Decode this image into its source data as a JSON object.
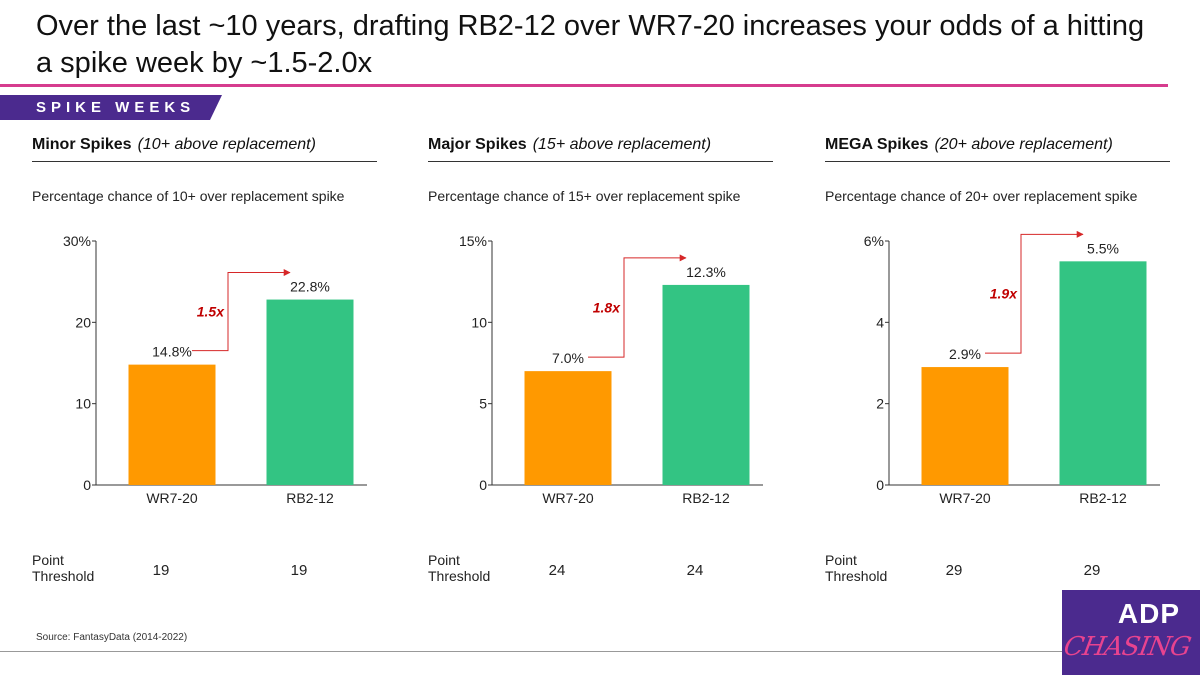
{
  "title": "Over the last ~10 years, drafting RB2-12 over WR7-20 increases your odds of a hitting a spike week by ~1.5-2.0x",
  "section_tag": "SPIKE WEEKS",
  "threshold_label_line1": "Point",
  "threshold_label_line2": "Threshold",
  "source": "Source: FantasyData (2014-2022)",
  "logo": {
    "top": "ADP",
    "bottom": "CHASING"
  },
  "colors": {
    "wr": "#ff9900",
    "rb": "#33c483",
    "multiplier": "#c00000",
    "arrow": "#d62728"
  },
  "panels": [
    {
      "heading": "Minor Spikes",
      "qualifier": "(10+ above replacement)",
      "subtitle": "Percentage chance of 10+ over replacement spike"
    },
    {
      "heading": "Major Spikes",
      "qualifier": "(15+ above replacement)",
      "subtitle": "Percentage chance of 15+ over replacement spike"
    },
    {
      "heading": "MEGA Spikes",
      "qualifier": "(20+ above replacement)",
      "subtitle": "Percentage chance of 20+ over replacement spike"
    }
  ],
  "chart_data": [
    {
      "type": "bar",
      "categories": [
        "WR7-20",
        "RB2-12"
      ],
      "values": [
        14.8,
        22.8
      ],
      "data_labels": [
        "14.8%",
        "22.8%"
      ],
      "ylim": [
        0,
        30
      ],
      "yticks": [
        0,
        10,
        20,
        30
      ],
      "ytick_labels": [
        "0",
        "10",
        "20",
        "30%"
      ],
      "multiplier": "1.5x",
      "point_threshold": [
        19,
        19
      ]
    },
    {
      "type": "bar",
      "categories": [
        "WR7-20",
        "RB2-12"
      ],
      "values": [
        7.0,
        12.3
      ],
      "data_labels": [
        "7.0%",
        "12.3%"
      ],
      "ylim": [
        0,
        15
      ],
      "yticks": [
        0,
        5,
        10,
        15
      ],
      "ytick_labels": [
        "0",
        "5",
        "10",
        "15%"
      ],
      "multiplier": "1.8x",
      "point_threshold": [
        24,
        24
      ]
    },
    {
      "type": "bar",
      "categories": [
        "WR7-20",
        "RB2-12"
      ],
      "values": [
        2.9,
        5.5
      ],
      "data_labels": [
        "2.9%",
        "5.5%"
      ],
      "ylim": [
        0,
        6
      ],
      "yticks": [
        0,
        2,
        4,
        6
      ],
      "ytick_labels": [
        "0",
        "2",
        "4",
        "6%"
      ],
      "multiplier": "1.9x",
      "point_threshold": [
        29,
        29
      ]
    }
  ]
}
